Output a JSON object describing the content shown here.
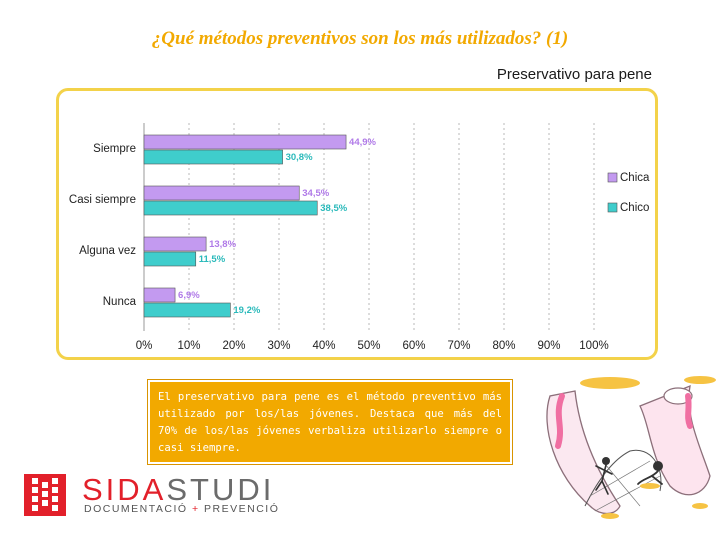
{
  "page": {
    "title": "¿Qué métodos preventivos son los más utilizados? (1)",
    "subtitle": "Preservativo para pene"
  },
  "chart_data": {
    "type": "bar",
    "orientation": "horizontal",
    "title": "Preservativo para pene",
    "categories": [
      "Siempre",
      "Casi siempre",
      "Alguna vez",
      "Nunca"
    ],
    "series": [
      {
        "name": "Chica",
        "color": "#c39af0",
        "label_color": "#b07ae8",
        "values": [
          44.9,
          34.5,
          13.8,
          6.9
        ],
        "labels": [
          "44,9%",
          "34,5%",
          "13,8%",
          "6,9%"
        ]
      },
      {
        "name": "Chico",
        "color": "#3fcdcc",
        "label_color": "#2bbabb",
        "values": [
          30.8,
          38.5,
          11.5,
          19.2
        ],
        "labels": [
          "30,8%",
          "38,5%",
          "11,5%",
          "19,2%"
        ]
      }
    ],
    "xlim": [
      0,
      100
    ],
    "xticks": [
      "0%",
      "10%",
      "20%",
      "30%",
      "40%",
      "50%",
      "60%",
      "70%",
      "80%",
      "90%",
      "100%"
    ],
    "gridlines": true,
    "legend": "right"
  },
  "text_box": {
    "text": "El preservativo para pene es el método preventivo más utilizado por los/las jóvenes. Destaca que más del 70% de los/las jóvenes verbaliza utilizarlo siempre o casi siempre."
  },
  "logo": {
    "word_part1": "SIDA",
    "word_part2": "STUDI",
    "tagline_part1": "DOCUMENTACIÓ",
    "tagline_plus": "+",
    "tagline_part2": "PREVENCIÓ",
    "brand_color": "#e2202a"
  }
}
